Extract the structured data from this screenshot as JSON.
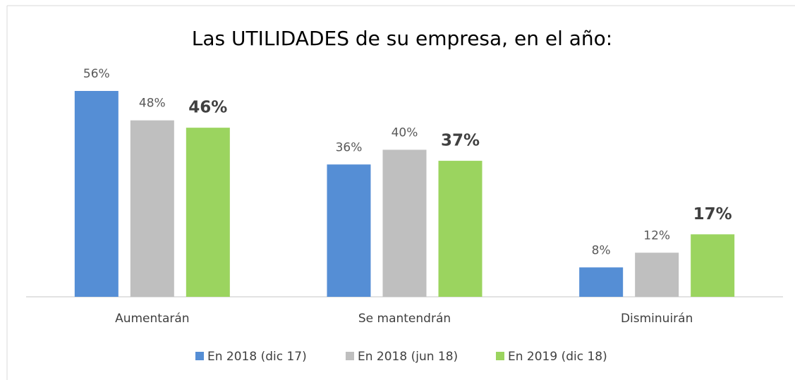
{
  "chart_data": {
    "type": "bar",
    "title": "Las UTILIDADES de su empresa, en el año:",
    "categories": [
      "Aumentarán",
      "Se mantendrán",
      "Disminuirán"
    ],
    "series": [
      {
        "name": "En 2018 (dic 17)",
        "color": "#558ed5",
        "values": [
          56,
          36,
          8
        ],
        "value_labels": [
          "56%",
          "36%",
          "8%"
        ]
      },
      {
        "name": "En 2018 (jun 18)",
        "color": "#bfbfbf",
        "values": [
          48,
          40,
          12
        ],
        "value_labels": [
          "48%",
          "40%",
          "12%"
        ]
      },
      {
        "name": "En 2019 (dic 18)",
        "color": "#9bd45f",
        "values": [
          46,
          37,
          17
        ],
        "value_labels": [
          "46%",
          "37%",
          "17%"
        ]
      }
    ],
    "legend": "bottom"
  }
}
